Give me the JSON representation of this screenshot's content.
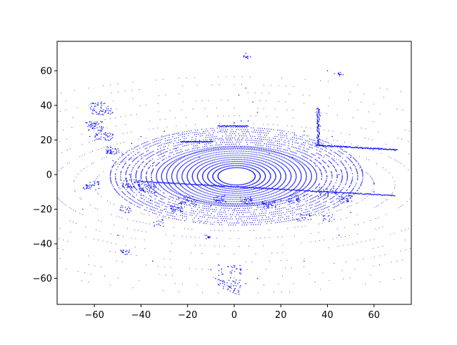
{
  "chart_data": {
    "type": "scatter",
    "title": "",
    "xlabel": "",
    "ylabel": "",
    "xlim": [
      -76,
      76
    ],
    "ylim": [
      -75,
      77
    ],
    "xticks": [
      -60,
      -40,
      -20,
      0,
      20,
      40,
      60
    ],
    "yticks": [
      -60,
      -40,
      -20,
      0,
      20,
      40,
      60
    ],
    "xtick_labels": [
      "−60",
      "−40",
      "−20",
      "0",
      "20",
      "40",
      "60"
    ],
    "ytick_labels": [
      "−60",
      "−40",
      "−20",
      "0",
      "20",
      "40",
      "60"
    ],
    "grid": false,
    "marker_color": "#0000ff",
    "marker": "small dots",
    "series": [
      {
        "description_points": "LiDAR-like point cloud: concentric rings around origin with empty center, plus structures",
        "points": [
          [
            36,
            38
          ],
          [
            37,
            34
          ],
          [
            37,
            28
          ],
          [
            36,
            22
          ],
          [
            35,
            18
          ],
          [
            38,
            17
          ],
          [
            42,
            16.5
          ],
          [
            48,
            16
          ],
          [
            55,
            15
          ],
          [
            62,
            14.5
          ],
          [
            69,
            14
          ],
          [
            -10,
            20
          ],
          [
            -15,
            18
          ],
          [
            -20,
            19
          ],
          [
            -6,
            25
          ],
          [
            -3,
            28
          ],
          [
            0,
            30
          ],
          [
            3,
            31
          ],
          [
            6,
            31
          ],
          [
            -58,
            35
          ],
          [
            -57,
            42
          ],
          [
            -60,
            28
          ],
          [
            -62,
            22
          ],
          [
            -55,
            20
          ],
          [
            -63,
            -7
          ],
          [
            -58,
            -8
          ],
          [
            -48,
            -45
          ],
          [
            -46,
            -46
          ],
          [
            -11,
            -36
          ],
          [
            -12,
            -37
          ],
          [
            -10,
            -55
          ],
          [
            -8,
            -60
          ],
          [
            -6,
            -63
          ],
          [
            0,
            -67
          ],
          [
            5,
            -63
          ],
          [
            10,
            -60
          ],
          [
            5,
            50
          ],
          [
            2,
            46
          ],
          [
            8,
            42
          ],
          [
            10,
            36
          ],
          [
            45,
            58
          ],
          [
            40,
            60
          ],
          [
            5,
            70
          ],
          [
            7,
            68
          ],
          [
            -40,
            -12
          ],
          [
            -36,
            -15
          ],
          [
            -30,
            -20
          ],
          [
            -20,
            -15
          ],
          [
            -10,
            -18
          ],
          [
            0,
            -20
          ],
          [
            10,
            -18
          ],
          [
            20,
            -15
          ],
          [
            30,
            -12
          ],
          [
            40,
            -10
          ],
          [
            50,
            -12
          ],
          [
            60,
            -10
          ],
          [
            -45,
            0
          ],
          [
            -35,
            5
          ],
          [
            -25,
            15
          ],
          [
            -15,
            10
          ],
          [
            15,
            12
          ],
          [
            25,
            10
          ],
          [
            35,
            5
          ],
          [
            45,
            0
          ],
          [
            55,
            2
          ],
          [
            -65,
            -20
          ],
          [
            -50,
            -35
          ],
          [
            -35,
            -50
          ],
          [
            30,
            -50
          ],
          [
            45,
            -35
          ],
          [
            50,
            -22
          ],
          [
            60,
            -5
          ],
          [
            -52,
            8
          ],
          [
            -48,
            12
          ],
          [
            -44,
            18
          ],
          [
            -40,
            22
          ],
          [
            -30,
            25
          ],
          [
            30,
            25
          ],
          [
            42,
            22
          ],
          [
            50,
            10
          ]
        ]
      }
    ]
  }
}
